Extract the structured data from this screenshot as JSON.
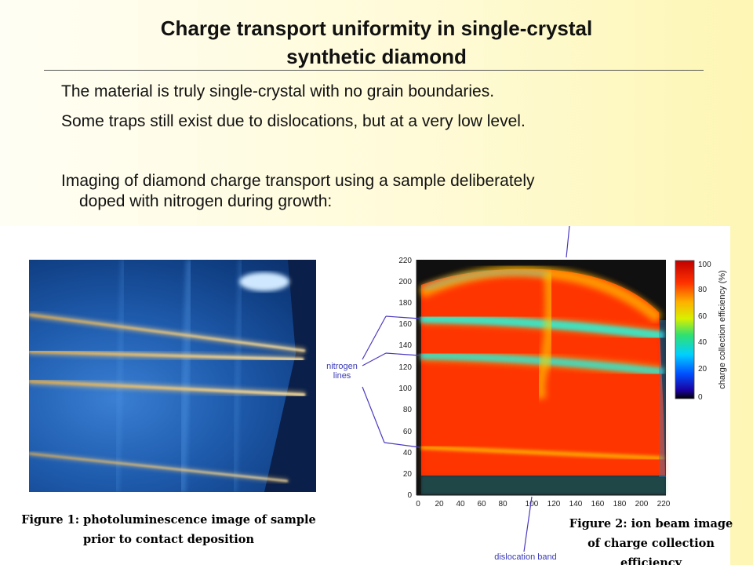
{
  "slide": {
    "title_line1": "Charge transport uniformity in single-crystal",
    "title_line2": "synthetic diamond",
    "bullets": [
      "The material is truly single-crystal with no grain boundaries.",
      "Some traps still exist due to dislocations, but at a very low level.",
      "Imaging of diamond charge transport using a sample deliberately",
      "doped with nitrogen during growth:"
    ]
  },
  "figure1": {
    "caption_line1": "Figure 1: photoluminescence image of sample",
    "caption_line2": "prior to contact deposition"
  },
  "figure2": {
    "caption_line1": "Figure 2: ion beam image",
    "caption_line2": "of charge collection",
    "caption_line3": "efficiency",
    "annotation_nitrogen_1": "nitrogen",
    "annotation_nitrogen_2": "lines",
    "annotation_dislocation": "dislocation band",
    "colorbar_label": "charge collection efficiency (%)",
    "colorbar_ticks": [
      "0",
      "20",
      "40",
      "60",
      "80",
      "100"
    ],
    "x_ticks": [
      "0",
      "20",
      "40",
      "60",
      "80",
      "100",
      "120",
      "140",
      "160",
      "180",
      "200",
      "220"
    ],
    "y_ticks": [
      "0",
      "20",
      "40",
      "60",
      "80",
      "100",
      "120",
      "140",
      "160",
      "180",
      "200",
      "220"
    ]
  }
}
